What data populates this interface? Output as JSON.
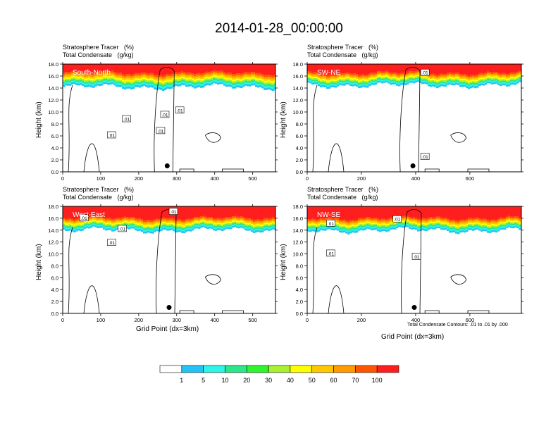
{
  "main_title": "2014-01-28_00:00:00",
  "x_axis_title": "Grid Point (dx=3km)",
  "y_axis_title": "Height (km)",
  "contour_note": "Total Condensate Contours: .01 to .01 by .000",
  "colorbar": {
    "levels": [
      "1",
      "5",
      "10",
      "20",
      "30",
      "40",
      "50",
      "60",
      "70",
      "100"
    ],
    "colors": [
      "#ffffff",
      "#2f88f0",
      "#23c4f5",
      "#2ef5e6",
      "#2ee58a",
      "#2ef52e",
      "#a8f032",
      "#ffff00",
      "#ffc800",
      "#ff9b00",
      "#ff5500",
      "#ff1e1e"
    ]
  },
  "chart_data": [
    {
      "type": "heatmap",
      "panel": "South-North",
      "title_line1": "Stratosphere Tracer   (%)",
      "title_line2": "Total Condensate   (g/kg)",
      "xlim": [
        0,
        560
      ],
      "ylim": [
        0,
        18
      ],
      "xticks": [
        0,
        100,
        200,
        300,
        400,
        500
      ],
      "yticks": [
        "0.0",
        "2.0",
        "4.0",
        "6.0",
        "8.0",
        "10.0",
        "12.0",
        "14.0",
        "16.0",
        "18.0"
      ],
      "contour_labels": [
        ".01",
        ".01",
        ".01",
        ".01",
        ".01"
      ],
      "marker_x": 275,
      "marker_y": 1.0,
      "tracer_top_km": 18,
      "tracer_red_base_km": 16.5,
      "tracer_base_km": 14.2
    },
    {
      "type": "heatmap",
      "panel": "SW-NE",
      "title_line1": "Stratosphere Tracer   (%)",
      "title_line2": "Total Condensate   (g/kg)",
      "xlim": [
        0,
        790
      ],
      "ylim": [
        0,
        18
      ],
      "xticks": [
        0,
        200,
        400,
        600
      ],
      "yticks": [
        "0.0",
        "2.0",
        "4.0",
        "6.0",
        "8.0",
        "10.0",
        "12.0",
        "14.0",
        "16.0",
        "18.0"
      ],
      "contour_labels": [
        ".01",
        ".01"
      ],
      "marker_x": 390,
      "marker_y": 1.0,
      "tracer_top_km": 18,
      "tracer_red_base_km": 16.5,
      "tracer_base_km": 14.5
    },
    {
      "type": "heatmap",
      "panel": "West-East",
      "title_line1": "Stratosphere Tracer   (%)",
      "title_line2": "Total Condensate   (g/kg)",
      "xlim": [
        0,
        560
      ],
      "ylim": [
        0,
        18
      ],
      "xticks": [
        0,
        100,
        200,
        300,
        400,
        500
      ],
      "yticks": [
        "0.0",
        "2.0",
        "4.0",
        "6.0",
        "8.0",
        "10.0",
        "12.0",
        "14.0",
        "16.0",
        "18.0"
      ],
      "contour_labels": [
        ".01",
        ".01",
        ".01",
        ".01"
      ],
      "marker_x": 280,
      "marker_y": 1.0,
      "tracer_top_km": 18,
      "tracer_red_base_km": 16.0,
      "tracer_base_km": 14.0
    },
    {
      "type": "heatmap",
      "panel": "NW-SE",
      "title_line1": "Stratosphere Tracer   (%)",
      "title_line2": "Total Condensate   (g/kg)",
      "xlim": [
        0,
        790
      ],
      "ylim": [
        0,
        18
      ],
      "xticks": [
        0,
        200,
        400,
        600
      ],
      "yticks": [
        "0.0",
        "2.0",
        "4.0",
        "6.0",
        "8.0",
        "10.0",
        "12.0",
        "14.0",
        "16.0",
        "18.0"
      ],
      "contour_labels": [
        ".01",
        ".01",
        ".01",
        ".01"
      ],
      "marker_x": 395,
      "marker_y": 1.0,
      "tracer_top_km": 18,
      "tracer_red_base_km": 16.0,
      "tracer_base_km": 14.0
    }
  ]
}
